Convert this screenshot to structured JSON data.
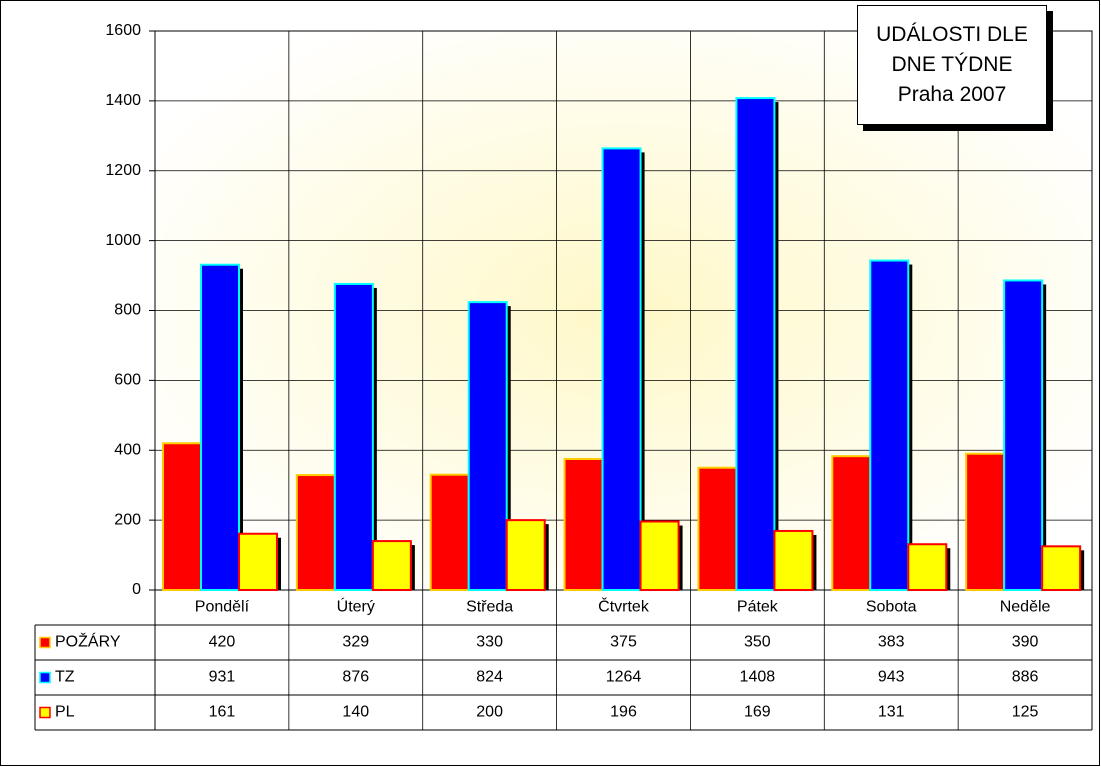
{
  "chart_data": {
    "type": "bar",
    "title": "UDÁLOSTI DLE DNE TÝDNE",
    "subtitle": "Praha 2007",
    "categories": [
      "Pondělí",
      "Úterý",
      "Středa",
      "Čtvrtek",
      "Pátek",
      "Sobota",
      "Neděle"
    ],
    "series": [
      {
        "name": "POŽÁRY",
        "color": "#ff0000",
        "values": [
          420,
          329,
          330,
          375,
          350,
          383,
          390
        ]
      },
      {
        "name": "TZ",
        "color": "#0000ff",
        "values": [
          931,
          876,
          824,
          1264,
          1408,
          943,
          886
        ]
      },
      {
        "name": "PL",
        "color": "#ffff00",
        "values": [
          161,
          140,
          200,
          196,
          169,
          131,
          125
        ]
      }
    ],
    "ylim": [
      0,
      1600
    ],
    "yticks": [
      0,
      200,
      400,
      600,
      800,
      1000,
      1200,
      1400,
      1600
    ],
    "grid": true
  }
}
